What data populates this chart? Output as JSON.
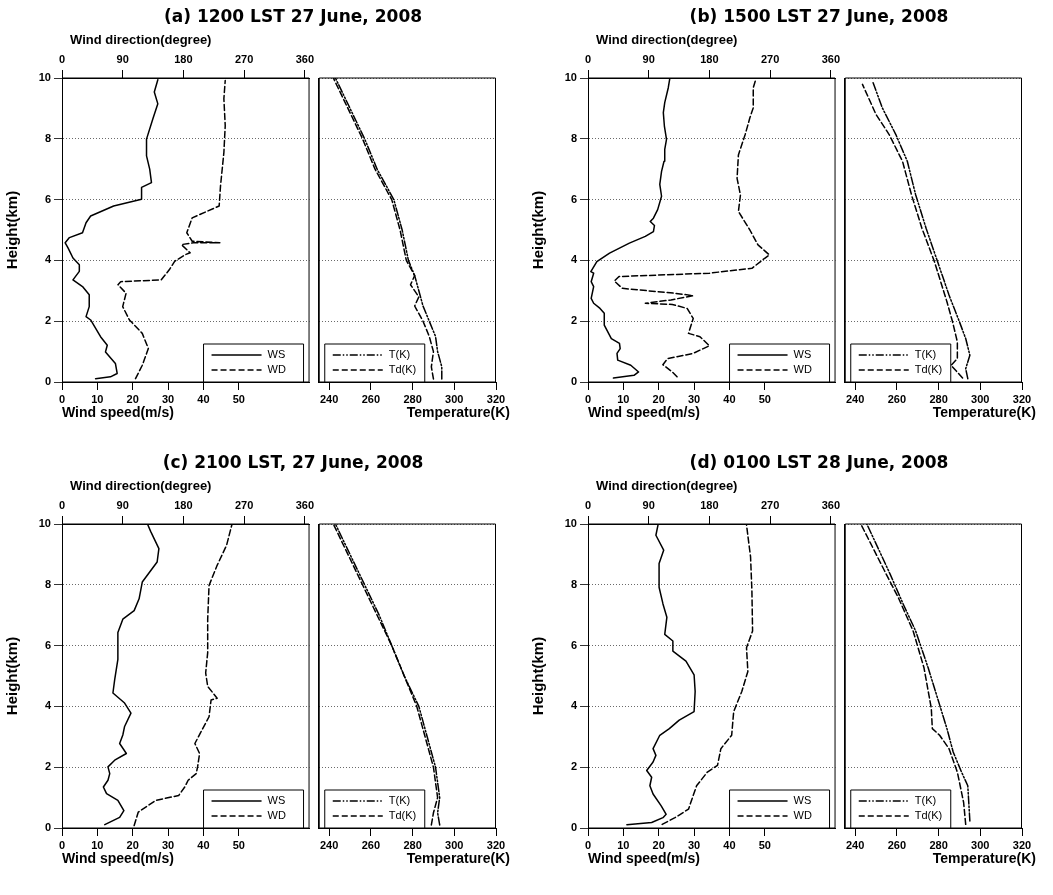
{
  "chart_data": [
    {
      "type": "line",
      "title": "(a) 1200 LST 27 June, 2008",
      "xlabel": "Wind speed(m/s)",
      "x2label": "Wind direction(degree)",
      "ylabel": "Height(km)",
      "xlim": [
        0,
        70
      ],
      "xticks": [
        0,
        10,
        20,
        30,
        40,
        50
      ],
      "x2lim": [
        0,
        367
      ],
      "x2ticks": [
        0,
        90,
        180,
        270,
        360
      ],
      "ylim": [
        0,
        10
      ],
      "yticks": [
        0,
        2,
        4,
        6,
        8,
        10
      ],
      "grid": "y",
      "legend": "bottom right",
      "series": [
        {
          "name": "WS",
          "color": "#000000",
          "line_style": "solid",
          "x": [
            9.5,
            13.7,
            15.6,
            15.1,
            12.3,
            12.8,
            10.9,
            8.1,
            6.8,
            7.7,
            7.7,
            5.8,
            3.1,
            4.9,
            4.9,
            3.1,
            1.7,
            0.9,
            2.1,
            5.8,
            6.8,
            8.1,
            14.6,
            22.5,
            22.5,
            25.3,
            24.8,
            23.9,
            23.9,
            25.7,
            27.1,
            26.1,
            27.1
          ],
          "values": [
            0.11,
            0.17,
            0.28,
            0.61,
            0.99,
            1.21,
            1.49,
            2.04,
            2.15,
            2.48,
            2.87,
            3.14,
            3.36,
            3.64,
            3.86,
            4.08,
            4.41,
            4.58,
            4.75,
            4.91,
            5.24,
            5.46,
            5.79,
            6.01,
            6.4,
            6.56,
            7.0,
            7.44,
            7.99,
            8.66,
            9.15,
            9.54,
            9.94
          ]
        },
        {
          "name": "WD",
          "color": "#000000",
          "axis": "x2",
          "line_style": "dashed",
          "x": [
            109,
            119,
            128,
            119,
            100,
            90,
            95,
            83,
            87,
            147,
            159,
            167,
            183,
            190,
            177,
            195,
            234,
            193,
            185,
            193,
            233,
            235,
            240,
            242,
            240,
            242
          ],
          "values": [
            0.11,
            0.55,
            1.1,
            1.6,
            2.04,
            2.48,
            2.92,
            3.2,
            3.3,
            3.36,
            3.69,
            3.97,
            4.19,
            4.25,
            4.52,
            4.58,
            4.58,
            4.63,
            4.91,
            5.4,
            5.79,
            6.45,
            7.55,
            8.43,
            9.32,
            9.92
          ]
        }
      ]
    },
    {
      "type": "line",
      "xlabel": "Temperature(K)",
      "xlim": [
        235,
        320
      ],
      "xticks": [
        240,
        260,
        280,
        300,
        320
      ],
      "ylim": [
        0,
        10
      ],
      "yticks": [
        0,
        2,
        4,
        6,
        8,
        10
      ],
      "grid": "y",
      "tick_labels": "x",
      "legend": "bottom left",
      "series": [
        {
          "name": "T(K)",
          "color": "#000000",
          "line_style": "dotted",
          "x": [
            294,
            294,
            292,
            291,
            288,
            285,
            283,
            281,
            278,
            275,
            271,
            263,
            257,
            250,
            243
          ],
          "values": [
            0.1,
            0.5,
            1.0,
            1.5,
            2.0,
            2.5,
            3.0,
            3.5,
            4.0,
            5.0,
            6.0,
            7.0,
            8.0,
            9.0,
            10.0
          ]
        },
        {
          "name": "Td(K)",
          "color": "#000000",
          "line_style": "dashed",
          "x": [
            290,
            289,
            290,
            288,
            285,
            281,
            283,
            279,
            281,
            277,
            274,
            270,
            262,
            256,
            249,
            242
          ],
          "values": [
            0.1,
            0.5,
            1.0,
            1.5,
            2.0,
            2.5,
            2.8,
            3.2,
            3.5,
            4.0,
            5.0,
            6.0,
            7.0,
            8.0,
            9.0,
            10.0
          ]
        }
      ]
    },
    {
      "type": "line",
      "title": "(b) 1500 LST 27 June, 2008",
      "xlabel": "Wind speed(m/s)",
      "x2label": "Wind direction(degree)",
      "ylabel": "Height(km)",
      "xlim": [
        0,
        70
      ],
      "xticks": [
        0,
        10,
        20,
        30,
        40,
        50
      ],
      "x2lim": [
        0,
        367
      ],
      "x2ticks": [
        0,
        90,
        180,
        270,
        360
      ],
      "ylim": [
        0,
        10
      ],
      "yticks": [
        0,
        2,
        4,
        6,
        8,
        10
      ],
      "grid": "y",
      "legend": "bottom right",
      "series": [
        {
          "name": "WS",
          "color": "#000000",
          "line_style": "solid",
          "x": [
            7.2,
            13,
            14.3,
            12.1,
            8.4,
            8.2,
            9.1,
            8.9,
            6.6,
            4.6,
            4.6,
            3.4,
            1.6,
            0.9,
            1.6,
            0.9,
            1.6,
            0.8,
            2.5,
            6.1,
            11.7,
            16.2,
            18.5,
            18.8,
            17.6,
            18.5,
            19.7,
            20.8,
            20.3,
            20.8,
            21.5,
            21.7,
            22.2,
            21.6,
            21.3,
            21.7,
            22.7,
            23.1
          ],
          "values": [
            0.13,
            0.22,
            0.33,
            0.55,
            0.72,
            0.94,
            1.1,
            1.27,
            1.43,
            1.87,
            2.26,
            2.42,
            2.59,
            2.75,
            3.14,
            3.3,
            3.58,
            3.63,
            3.96,
            4.24,
            4.57,
            4.79,
            4.95,
            5.15,
            5.28,
            5.39,
            5.67,
            6.11,
            6.5,
            6.93,
            7.26,
            7.65,
            7.98,
            8.42,
            8.86,
            9.19,
            9.68,
            9.96
          ]
        },
        {
          "name": "WD",
          "color": "#000000",
          "axis": "x2",
          "line_style": "dashed",
          "x": [
            132,
            125,
            111,
            118,
            156,
            171,
            180,
            166,
            149,
            156,
            147,
            125,
            85,
            123,
            156,
            128,
            51,
            39,
            46,
            180,
            243,
            262,
            269,
            252,
            240,
            223,
            226,
            221,
            223,
            233,
            240,
            245,
            245,
            248
          ],
          "values": [
            0.17,
            0.33,
            0.57,
            0.77,
            0.94,
            1.1,
            1.19,
            1.49,
            1.6,
            2.09,
            2.42,
            2.55,
            2.59,
            2.7,
            2.84,
            2.92,
            3.08,
            3.32,
            3.47,
            3.58,
            3.74,
            4.07,
            4.18,
            4.51,
            5.0,
            5.61,
            6.15,
            6.7,
            7.47,
            8.14,
            8.69,
            9.02,
            9.68,
            9.9
          ]
        }
      ]
    },
    {
      "type": "line",
      "xlabel": "Temperature(K)",
      "xlim": [
        235,
        320
      ],
      "xticks": [
        240,
        260,
        280,
        300,
        320
      ],
      "ylim": [
        0,
        10
      ],
      "yticks": [
        0,
        2,
        4,
        6,
        8,
        10
      ],
      "grid": "y",
      "tick_labels": "x",
      "legend": "bottom left",
      "series": [
        {
          "name": "T(K)",
          "color": "#000000",
          "line_style": "dotted",
          "x": [
            294,
            293,
            295,
            293,
            290,
            285,
            279.5,
            274,
            269,
            265,
            259.5,
            253,
            248.3
          ],
          "values": [
            0.11,
            0.44,
            0.88,
            1.43,
            1.98,
            2.86,
            3.96,
            5.06,
            6.16,
            7.26,
            8.14,
            9.02,
            9.9
          ]
        },
        {
          "name": "Td(K)",
          "color": "#000000",
          "line_style": "dashed",
          "x": [
            291.5,
            286,
            289,
            289,
            286.7,
            284,
            278,
            272,
            267,
            262.7,
            256.3,
            250,
            243.5
          ],
          "values": [
            0.13,
            0.55,
            0.77,
            1.32,
            1.98,
            2.64,
            3.96,
            5.06,
            6.16,
            7.26,
            8.14,
            8.8,
            9.79
          ]
        }
      ]
    },
    {
      "type": "line",
      "title": "(c) 2100 LST, 27 June, 2008",
      "xlabel": "Wind speed(m/s)",
      "x2label": "Wind direction(degree)",
      "ylabel": "Height(km)",
      "xlim": [
        0,
        70
      ],
      "xticks": [
        0,
        10,
        20,
        30,
        40,
        50
      ],
      "x2lim": [
        0,
        367
      ],
      "x2ticks": [
        0,
        90,
        180,
        270,
        360
      ],
      "ylim": [
        0,
        10
      ],
      "yticks": [
        0,
        2,
        4,
        6,
        8,
        10
      ],
      "grid": "y",
      "legend": "bottom right",
      "series": [
        {
          "name": "WS",
          "color": "#000000",
          "line_style": "solid",
          "x": [
            12.1,
            16.3,
            17.5,
            15.8,
            12.6,
            11.7,
            13.0,
            13.5,
            13.0,
            14.9,
            18.2,
            16.3,
            17.2,
            17.7,
            19.5,
            17.7,
            14.4,
            14.9,
            15.8,
            15.8,
            17.2,
            20.4,
            21.8,
            22.7,
            26.9,
            27.4,
            25.1,
            24.2
          ],
          "values": [
            0.11,
            0.35,
            0.57,
            0.91,
            1.13,
            1.35,
            1.57,
            1.79,
            2.01,
            2.23,
            2.45,
            2.78,
            3.06,
            3.34,
            3.78,
            4.11,
            4.44,
            4.88,
            5.55,
            6.43,
            6.87,
            7.15,
            7.54,
            8.09,
            8.75,
            9.19,
            9.75,
            9.99
          ]
        },
        {
          "name": "WD",
          "color": "#000000",
          "axis": "x2",
          "line_style": "dashed",
          "x": [
            107,
            113,
            139,
            173,
            182,
            187,
            199,
            201,
            204,
            197,
            206,
            218,
            221,
            230,
            216,
            213,
            216,
            216,
            218,
            230,
            244,
            252
          ],
          "values": [
            0.08,
            0.52,
            0.91,
            1.07,
            1.35,
            1.57,
            1.79,
            2.01,
            2.45,
            2.78,
            3.16,
            3.66,
            4.21,
            4.27,
            4.66,
            5.1,
            5.77,
            6.87,
            7.98,
            8.64,
            9.3,
            9.99
          ]
        }
      ]
    },
    {
      "type": "line",
      "xlabel": "Temperature(K)",
      "xlim": [
        235,
        320
      ],
      "xticks": [
        240,
        260,
        280,
        300,
        320
      ],
      "ylim": [
        0,
        10
      ],
      "yticks": [
        0,
        2,
        4,
        6,
        8,
        10
      ],
      "grid": "y",
      "tick_labels": "x",
      "legend": "bottom left",
      "series": [
        {
          "name": "T(K)",
          "color": "#000000",
          "line_style": "dotted",
          "x": [
            293,
            292,
            293,
            291,
            287,
            283,
            276,
            270,
            264,
            257,
            250,
            243
          ],
          "values": [
            0.1,
            0.5,
            1.0,
            2.0,
            3.0,
            4.0,
            5.0,
            6.0,
            7.0,
            8.0,
            9.0,
            10.0
          ]
        },
        {
          "name": "Td(K)",
          "color": "#000000",
          "line_style": "dashed",
          "x": [
            289,
            290,
            292,
            290,
            286,
            282,
            276,
            270,
            263,
            256,
            249,
            242
          ],
          "values": [
            0.1,
            0.5,
            1.0,
            2.0,
            3.0,
            4.0,
            5.0,
            6.0,
            7.0,
            8.0,
            9.0,
            10.0
          ]
        }
      ]
    },
    {
      "type": "line",
      "title": "(d) 0100 LST 28 June, 2008",
      "xlabel": "Wind speed(m/s)",
      "x2label": "Wind direction(degree)",
      "ylabel": "Height(km)",
      "xlim": [
        0,
        70
      ],
      "xticks": [
        0,
        10,
        20,
        30,
        40,
        50
      ],
      "x2lim": [
        0,
        367
      ],
      "x2ticks": [
        0,
        90,
        180,
        270,
        360
      ],
      "ylim": [
        0,
        10
      ],
      "yticks": [
        0,
        2,
        4,
        6,
        8,
        10
      ],
      "grid": "y",
      "legend": "bottom right",
      "series": [
        {
          "name": "WS",
          "color": "#000000",
          "line_style": "solid",
          "x": [
            11,
            18,
            21.2,
            22.1,
            20.7,
            18.4,
            17.5,
            18,
            16.6,
            18.4,
            19.2,
            18.4,
            20.3,
            23,
            25.8,
            30,
            30.3,
            30,
            27.7,
            24,
            24,
            21.7,
            22.3,
            21.2,
            20.1,
            20.1,
            21.4,
            19.2,
            19.8
          ],
          "values": [
            0.11,
            0.18,
            0.34,
            0.45,
            0.73,
            1.12,
            1.39,
            1.67,
            1.89,
            2.17,
            2.39,
            2.61,
            3.05,
            3.27,
            3.55,
            3.83,
            4.49,
            5.04,
            5.49,
            5.82,
            6.15,
            6.37,
            6.93,
            7.37,
            7.92,
            8.7,
            9.14,
            9.63,
            9.97
          ]
        },
        {
          "name": "WD",
          "color": "#000000",
          "axis": "x2",
          "line_style": "dashed",
          "x": [
            110,
            129,
            149,
            161,
            177,
            192,
            197,
            213,
            216,
            228,
            237,
            235,
            244,
            243,
            241,
            235
          ],
          "values": [
            0.12,
            0.34,
            0.62,
            1.39,
            1.84,
            2.06,
            2.61,
            3.05,
            3.83,
            4.49,
            5.15,
            5.93,
            6.48,
            7.81,
            8.92,
            9.97
          ]
        }
      ]
    },
    {
      "type": "line",
      "xlabel": "Temperature(K)",
      "xlim": [
        235,
        320
      ],
      "xticks": [
        240,
        260,
        280,
        300,
        320
      ],
      "ylim": [
        0,
        10
      ],
      "yticks": [
        0,
        2,
        4,
        6,
        8,
        10
      ],
      "grid": "y",
      "tick_labels": "x",
      "legend": "bottom left",
      "series": [
        {
          "name": "T(K)",
          "color": "#000000",
          "line_style": "dotted",
          "x": [
            295,
            294,
            291,
            287,
            284,
            280.5,
            275,
            269,
            263,
            256.7,
            245.6
          ],
          "values": [
            0.23,
            1.39,
            1.84,
            2.5,
            3.27,
            4.05,
            5.27,
            6.48,
            7.37,
            8.36,
            10.0
          ]
        },
        {
          "name": "Td(K)",
          "color": "#000000",
          "line_style": "dashed",
          "x": [
            293,
            292,
            289,
            285,
            280.5,
            277,
            276.5,
            273,
            267.8,
            260.6,
            254,
            242.7
          ],
          "values": [
            0.12,
            0.84,
            1.84,
            2.61,
            3.05,
            3.27,
            3.94,
            5.27,
            6.48,
            7.59,
            8.47,
            10.0
          ]
        }
      ]
    }
  ]
}
